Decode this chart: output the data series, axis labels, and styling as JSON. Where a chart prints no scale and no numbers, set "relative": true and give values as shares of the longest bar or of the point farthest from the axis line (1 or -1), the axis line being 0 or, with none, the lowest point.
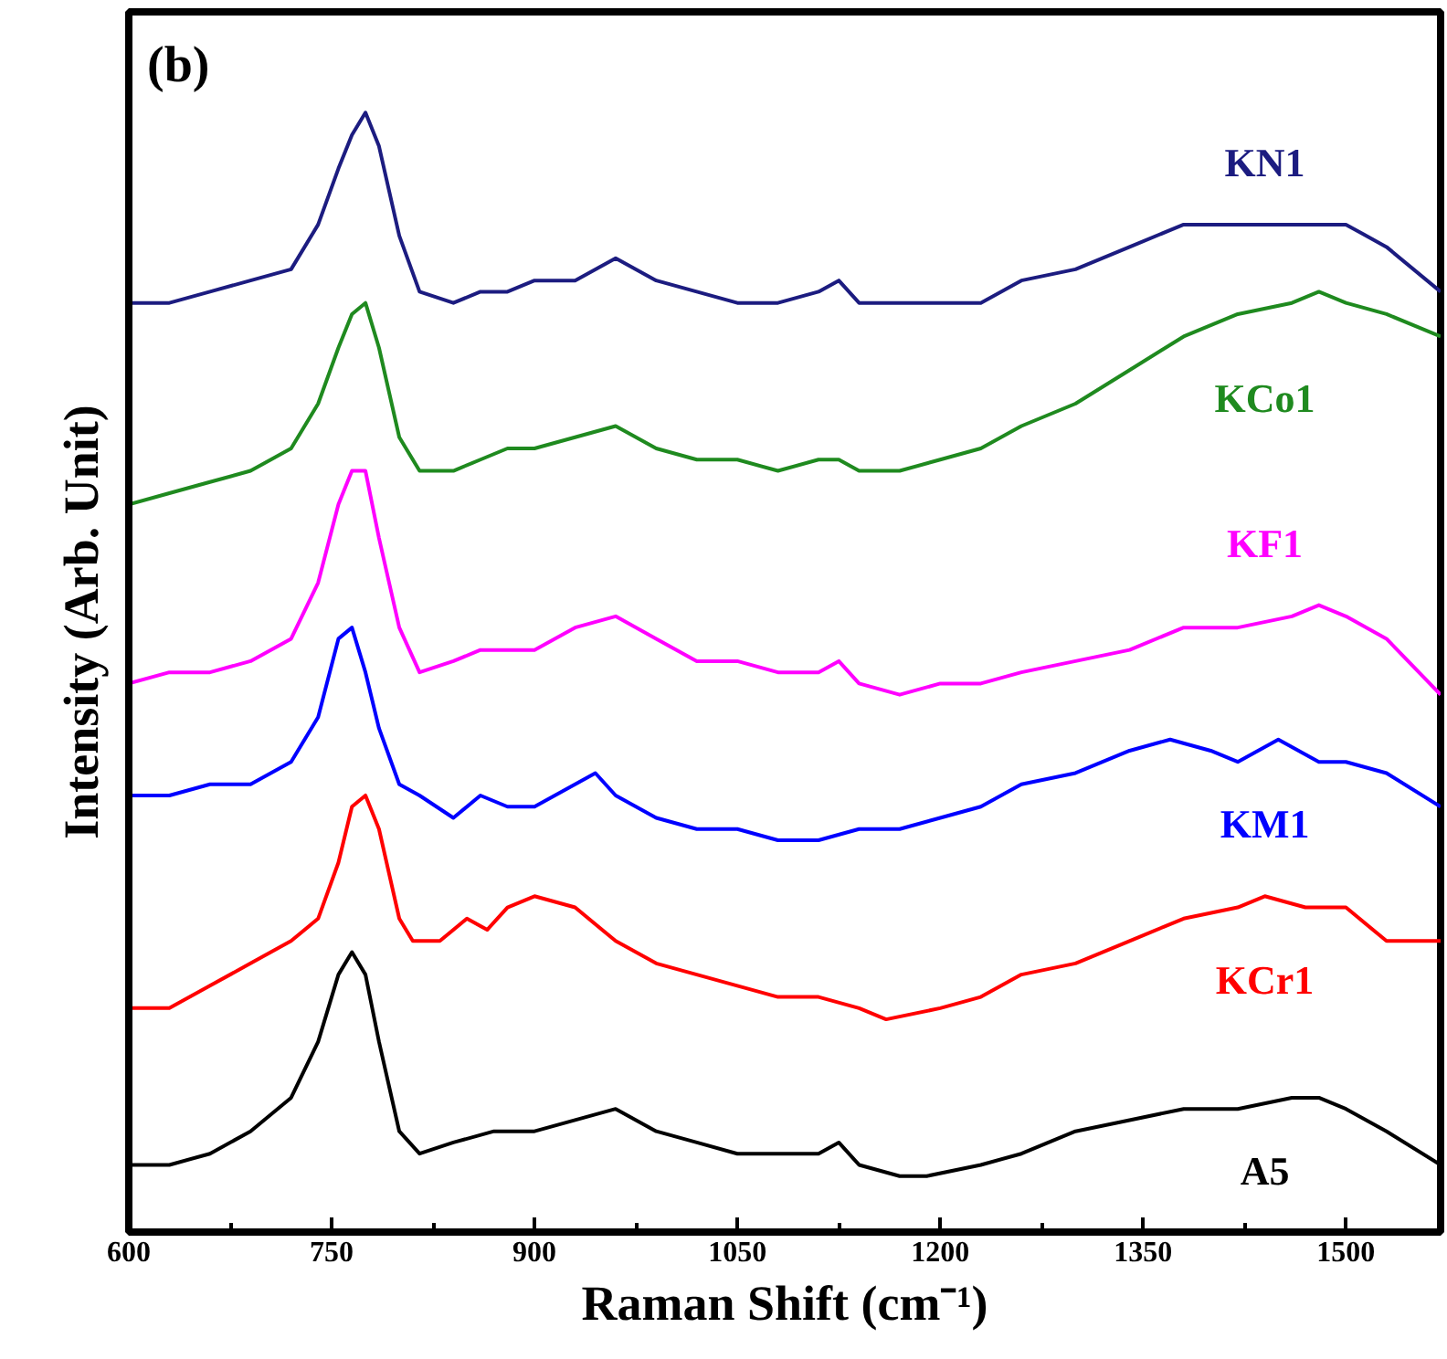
{
  "chart_data": {
    "type": "line",
    "relative": true,
    "xlabel": "Raman Shift (cm⁻¹)",
    "ylabel": "Intensity (Arb. Unit)",
    "annotations": [
      "(b)"
    ],
    "xlim": [
      600,
      1570
    ],
    "xticks": [
      600,
      750,
      900,
      1050,
      1200,
      1350,
      1500
    ],
    "grid": false,
    "series": [
      {
        "name": "KN1",
        "color": "#1c1c80",
        "x": [
          600,
          630,
          660,
          690,
          720,
          740,
          755,
          765,
          775,
          785,
          800,
          815,
          840,
          860,
          880,
          900,
          930,
          960,
          990,
          1020,
          1050,
          1080,
          1110,
          1125,
          1140,
          1170,
          1200,
          1230,
          1260,
          1300,
          1340,
          1380,
          1420,
          1460,
          1480,
          1500,
          1530,
          1570
        ],
        "values": [
          0.83,
          0.83,
          0.84,
          0.85,
          0.86,
          0.9,
          0.95,
          0.98,
          1.0,
          0.97,
          0.89,
          0.84,
          0.83,
          0.84,
          0.84,
          0.85,
          0.85,
          0.87,
          0.85,
          0.84,
          0.83,
          0.83,
          0.84,
          0.85,
          0.83,
          0.83,
          0.83,
          0.83,
          0.85,
          0.86,
          0.88,
          0.9,
          0.9,
          0.9,
          0.9,
          0.9,
          0.88,
          0.84
        ]
      },
      {
        "name": "KCo1",
        "color": "#1f8a1f",
        "x": [
          600,
          630,
          660,
          690,
          720,
          740,
          755,
          765,
          775,
          785,
          800,
          815,
          840,
          860,
          880,
          900,
          930,
          960,
          990,
          1020,
          1050,
          1080,
          1110,
          1125,
          1140,
          1170,
          1200,
          1230,
          1260,
          1300,
          1340,
          1380,
          1420,
          1460,
          1480,
          1500,
          1530,
          1570
        ],
        "values": [
          0.65,
          0.66,
          0.67,
          0.68,
          0.7,
          0.74,
          0.79,
          0.82,
          0.83,
          0.79,
          0.71,
          0.68,
          0.68,
          0.69,
          0.7,
          0.7,
          0.71,
          0.72,
          0.7,
          0.69,
          0.69,
          0.68,
          0.69,
          0.69,
          0.68,
          0.68,
          0.69,
          0.7,
          0.72,
          0.74,
          0.77,
          0.8,
          0.82,
          0.83,
          0.84,
          0.83,
          0.82,
          0.8
        ]
      },
      {
        "name": "KF1",
        "color": "#ff00ff",
        "x": [
          600,
          630,
          660,
          690,
          720,
          740,
          755,
          765,
          775,
          785,
          800,
          815,
          840,
          860,
          880,
          900,
          930,
          960,
          990,
          1020,
          1050,
          1080,
          1110,
          1125,
          1140,
          1170,
          1200,
          1230,
          1260,
          1300,
          1340,
          1380,
          1420,
          1460,
          1480,
          1500,
          1530,
          1570
        ],
        "values": [
          0.49,
          0.5,
          0.5,
          0.51,
          0.53,
          0.58,
          0.65,
          0.68,
          0.68,
          0.62,
          0.54,
          0.5,
          0.51,
          0.52,
          0.52,
          0.52,
          0.54,
          0.55,
          0.53,
          0.51,
          0.51,
          0.5,
          0.5,
          0.51,
          0.49,
          0.48,
          0.49,
          0.49,
          0.5,
          0.51,
          0.52,
          0.54,
          0.54,
          0.55,
          0.56,
          0.55,
          0.53,
          0.48
        ]
      },
      {
        "name": "KM1",
        "color": "#0000ff",
        "x": [
          600,
          630,
          660,
          690,
          720,
          740,
          755,
          765,
          775,
          785,
          800,
          815,
          840,
          860,
          880,
          900,
          930,
          945,
          960,
          990,
          1020,
          1050,
          1080,
          1110,
          1140,
          1170,
          1200,
          1230,
          1260,
          1300,
          1340,
          1370,
          1400,
          1420,
          1450,
          1480,
          1500,
          1530,
          1570
        ],
        "values": [
          0.39,
          0.39,
          0.4,
          0.4,
          0.42,
          0.46,
          0.53,
          0.54,
          0.5,
          0.45,
          0.4,
          0.39,
          0.37,
          0.39,
          0.38,
          0.38,
          0.4,
          0.41,
          0.39,
          0.37,
          0.36,
          0.36,
          0.35,
          0.35,
          0.36,
          0.36,
          0.37,
          0.38,
          0.4,
          0.41,
          0.43,
          0.44,
          0.43,
          0.42,
          0.44,
          0.42,
          0.42,
          0.41,
          0.38
        ]
      },
      {
        "name": "KCr1",
        "color": "#ff0000",
        "x": [
          600,
          630,
          660,
          690,
          720,
          740,
          755,
          765,
          775,
          785,
          800,
          810,
          830,
          850,
          865,
          880,
          900,
          930,
          960,
          990,
          1020,
          1050,
          1080,
          1110,
          1140,
          1160,
          1200,
          1230,
          1260,
          1300,
          1340,
          1380,
          1420,
          1440,
          1470,
          1500,
          1530,
          1570
        ],
        "values": [
          0.2,
          0.2,
          0.22,
          0.24,
          0.26,
          0.28,
          0.33,
          0.38,
          0.39,
          0.36,
          0.28,
          0.26,
          0.26,
          0.28,
          0.27,
          0.29,
          0.3,
          0.29,
          0.26,
          0.24,
          0.23,
          0.22,
          0.21,
          0.21,
          0.2,
          0.19,
          0.2,
          0.21,
          0.23,
          0.24,
          0.26,
          0.28,
          0.29,
          0.3,
          0.29,
          0.29,
          0.26,
          0.26
        ]
      },
      {
        "name": "A5",
        "color": "#000000",
        "x": [
          600,
          630,
          660,
          690,
          720,
          740,
          755,
          765,
          775,
          785,
          800,
          815,
          840,
          870,
          900,
          930,
          960,
          990,
          1020,
          1050,
          1080,
          1110,
          1125,
          1140,
          1170,
          1190,
          1230,
          1260,
          1300,
          1340,
          1380,
          1420,
          1460,
          1480,
          1500,
          1530,
          1570
        ],
        "values": [
          0.06,
          0.06,
          0.07,
          0.09,
          0.12,
          0.17,
          0.23,
          0.25,
          0.23,
          0.17,
          0.09,
          0.07,
          0.08,
          0.09,
          0.09,
          0.1,
          0.11,
          0.09,
          0.08,
          0.07,
          0.07,
          0.07,
          0.08,
          0.06,
          0.05,
          0.05,
          0.06,
          0.07,
          0.09,
          0.1,
          0.11,
          0.11,
          0.12,
          0.12,
          0.11,
          0.09,
          0.06
        ]
      }
    ]
  }
}
